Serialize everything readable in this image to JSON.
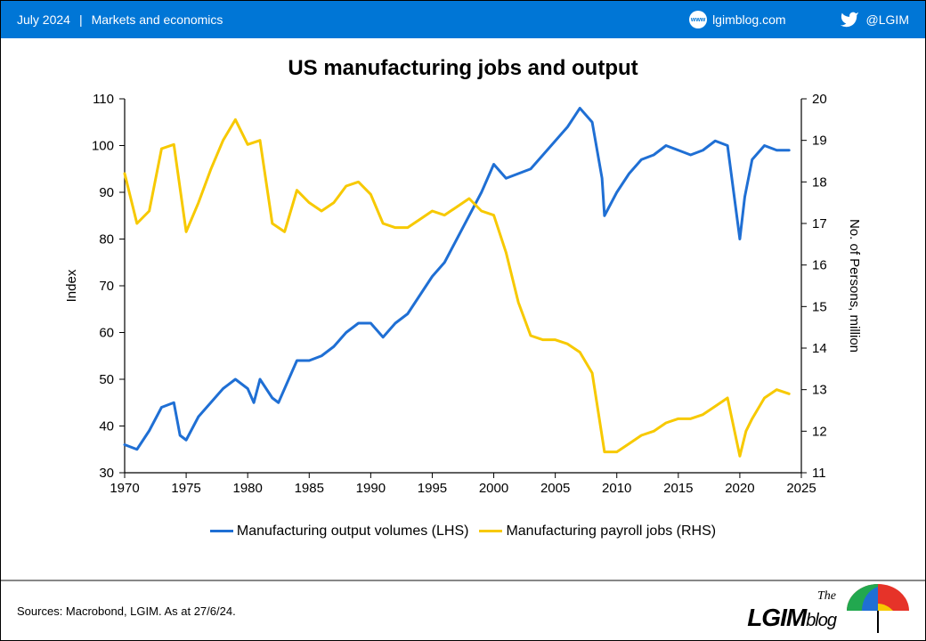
{
  "header": {
    "date": "July 2024",
    "separator": "|",
    "category": "Markets and economics",
    "blog_link": "lgimblog.com",
    "twitter_handle": "@LGIM"
  },
  "chart": {
    "title": "US manufacturing jobs and output",
    "type": "line",
    "background_color": "#ffffff",
    "axis_color": "#000000",
    "tick_length": 6,
    "line_width": 3,
    "font_size_axis": 15,
    "x": {
      "min": 1970,
      "max": 2025,
      "ticks": [
        1970,
        1975,
        1980,
        1985,
        1990,
        1995,
        2000,
        2005,
        2010,
        2015,
        2020,
        2025
      ]
    },
    "y_left": {
      "label": "Index",
      "min": 30,
      "max": 110,
      "ticks": [
        30,
        40,
        50,
        60,
        70,
        80,
        90,
        100,
        110
      ]
    },
    "y_right": {
      "label": "No. of Persons, million",
      "min": 11,
      "max": 20,
      "ticks": [
        11,
        12,
        13,
        14,
        15,
        16,
        17,
        18,
        19,
        20
      ]
    },
    "series": [
      {
        "name": "Manufacturing output volumes (LHS)",
        "color": "#1f6fd4",
        "axis": "left",
        "data": [
          [
            1970,
            36
          ],
          [
            1971,
            35
          ],
          [
            1972,
            39
          ],
          [
            1973,
            44
          ],
          [
            1974,
            45
          ],
          [
            1974.5,
            38
          ],
          [
            1975,
            37
          ],
          [
            1976,
            42
          ],
          [
            1977,
            45
          ],
          [
            1978,
            48
          ],
          [
            1979,
            50
          ],
          [
            1980,
            48
          ],
          [
            1980.5,
            45
          ],
          [
            1981,
            50
          ],
          [
            1982,
            46
          ],
          [
            1982.5,
            45
          ],
          [
            1983,
            48
          ],
          [
            1984,
            54
          ],
          [
            1985,
            54
          ],
          [
            1986,
            55
          ],
          [
            1987,
            57
          ],
          [
            1988,
            60
          ],
          [
            1989,
            62
          ],
          [
            1990,
            62
          ],
          [
            1991,
            59
          ],
          [
            1992,
            62
          ],
          [
            1993,
            64
          ],
          [
            1994,
            68
          ],
          [
            1995,
            72
          ],
          [
            1996,
            75
          ],
          [
            1997,
            80
          ],
          [
            1998,
            85
          ],
          [
            1999,
            90
          ],
          [
            2000,
            96
          ],
          [
            2001,
            93
          ],
          [
            2002,
            94
          ],
          [
            2003,
            95
          ],
          [
            2004,
            98
          ],
          [
            2005,
            101
          ],
          [
            2006,
            104
          ],
          [
            2007,
            108
          ],
          [
            2008,
            105
          ],
          [
            2008.8,
            93
          ],
          [
            2009,
            85
          ],
          [
            2010,
            90
          ],
          [
            2011,
            94
          ],
          [
            2012,
            97
          ],
          [
            2013,
            98
          ],
          [
            2014,
            100
          ],
          [
            2015,
            99
          ],
          [
            2016,
            98
          ],
          [
            2017,
            99
          ],
          [
            2018,
            101
          ],
          [
            2019,
            100
          ],
          [
            2020,
            80
          ],
          [
            2020.4,
            89
          ],
          [
            2021,
            97
          ],
          [
            2022,
            100
          ],
          [
            2023,
            99
          ],
          [
            2024,
            99
          ]
        ]
      },
      {
        "name": "Manufacturing payroll jobs (RHS)",
        "color": "#f7c900",
        "axis": "right",
        "data": [
          [
            1970,
            18.2
          ],
          [
            1971,
            17.0
          ],
          [
            1972,
            17.3
          ],
          [
            1973,
            18.8
          ],
          [
            1974,
            18.9
          ],
          [
            1975,
            16.8
          ],
          [
            1976,
            17.5
          ],
          [
            1977,
            18.3
          ],
          [
            1978,
            19.0
          ],
          [
            1979,
            19.5
          ],
          [
            1980,
            18.9
          ],
          [
            1981,
            19.0
          ],
          [
            1982,
            17.0
          ],
          [
            1983,
            16.8
          ],
          [
            1984,
            17.8
          ],
          [
            1985,
            17.5
          ],
          [
            1986,
            17.3
          ],
          [
            1987,
            17.5
          ],
          [
            1988,
            17.9
          ],
          [
            1989,
            18.0
          ],
          [
            1990,
            17.7
          ],
          [
            1991,
            17.0
          ],
          [
            1992,
            16.9
          ],
          [
            1993,
            16.9
          ],
          [
            1994,
            17.1
          ],
          [
            1995,
            17.3
          ],
          [
            1996,
            17.2
          ],
          [
            1997,
            17.4
          ],
          [
            1998,
            17.6
          ],
          [
            1999,
            17.3
          ],
          [
            2000,
            17.2
          ],
          [
            2001,
            16.3
          ],
          [
            2002,
            15.1
          ],
          [
            2003,
            14.3
          ],
          [
            2004,
            14.2
          ],
          [
            2005,
            14.2
          ],
          [
            2006,
            14.1
          ],
          [
            2007,
            13.9
          ],
          [
            2008,
            13.4
          ],
          [
            2009,
            11.5
          ],
          [
            2010,
            11.5
          ],
          [
            2011,
            11.7
          ],
          [
            2012,
            11.9
          ],
          [
            2013,
            12.0
          ],
          [
            2014,
            12.2
          ],
          [
            2015,
            12.3
          ],
          [
            2016,
            12.3
          ],
          [
            2017,
            12.4
          ],
          [
            2018,
            12.6
          ],
          [
            2019,
            12.8
          ],
          [
            2020,
            11.4
          ],
          [
            2020.5,
            12.0
          ],
          [
            2021,
            12.3
          ],
          [
            2022,
            12.8
          ],
          [
            2023,
            13.0
          ],
          [
            2024,
            12.9
          ]
        ]
      }
    ],
    "legend": [
      {
        "label": "Manufacturing output volumes (LHS)",
        "color": "#1f6fd4"
      },
      {
        "label": "Manufacturing payroll jobs (RHS)",
        "color": "#f7c900"
      }
    ]
  },
  "footer": {
    "source": "Sources: Macrobond, LGIM. As at 27/6/24.",
    "logo_top": "The",
    "logo_main": "LGIM",
    "logo_sub": "blog"
  },
  "colors": {
    "header_bg": "#0076d6",
    "header_text": "#ffffff"
  }
}
